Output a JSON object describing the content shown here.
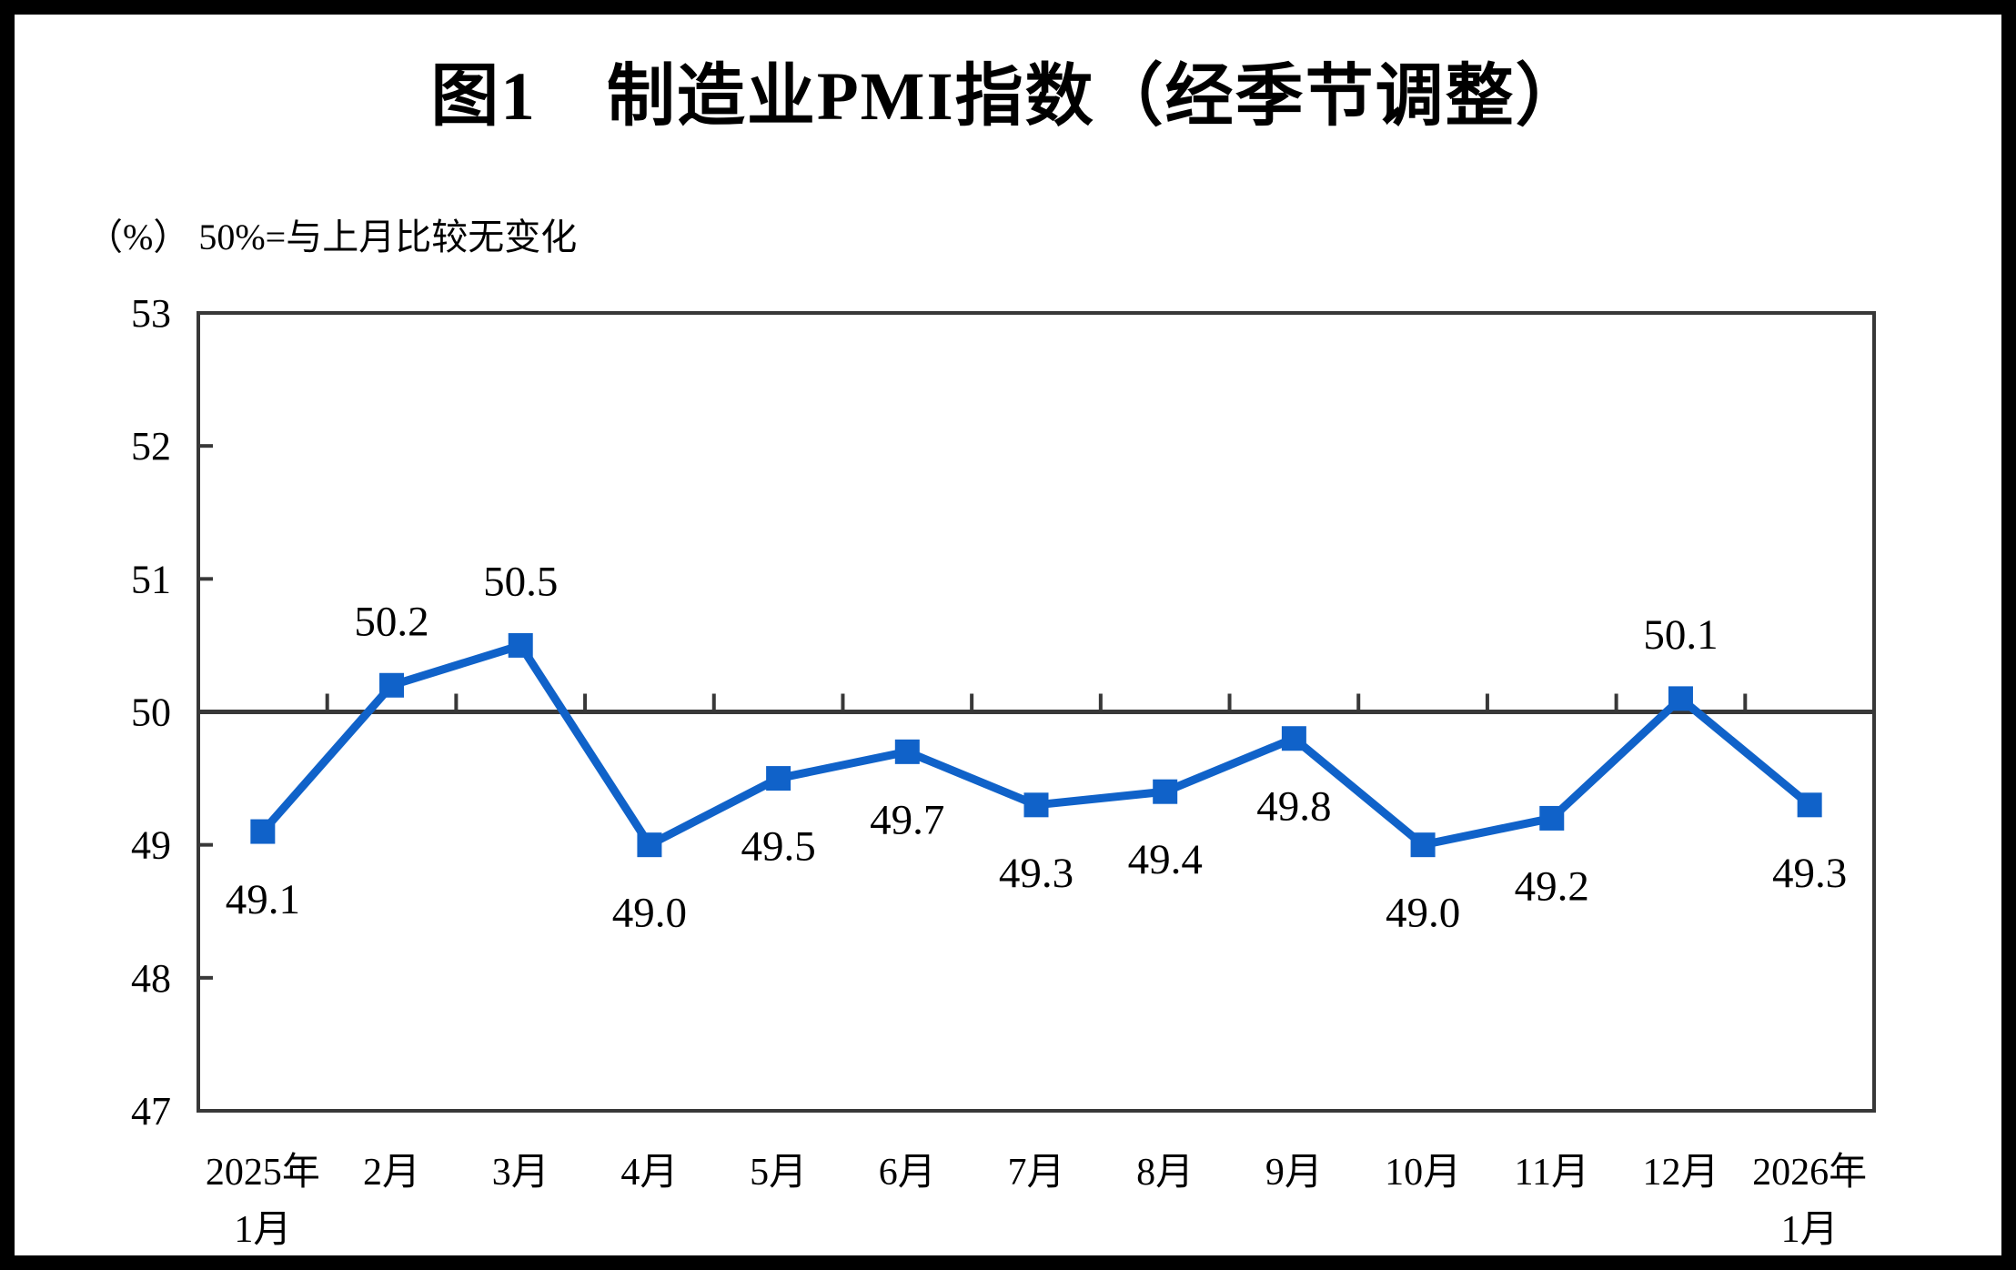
{
  "figure": {
    "title": "图1　制造业PMI指数（经季节调整）",
    "unit_note": "（%） 50%=与上月比较无变化",
    "border_color": "#000000",
    "background_color": "#ffffff"
  },
  "chart_data": {
    "type": "line",
    "title": "图1　制造业PMI指数（经季节调整）",
    "subtitle": "（%） 50%=与上月比较无变化",
    "categories": [
      [
        "2025年",
        "1月"
      ],
      [
        "2月"
      ],
      [
        "3月"
      ],
      [
        "4月"
      ],
      [
        "5月"
      ],
      [
        "6月"
      ],
      [
        "7月"
      ],
      [
        "8月"
      ],
      [
        "9月"
      ],
      [
        "10月"
      ],
      [
        "11月"
      ],
      [
        "12月"
      ],
      [
        "2026年",
        "1月"
      ]
    ],
    "values": [
      49.1,
      50.2,
      50.5,
      49.0,
      49.5,
      49.7,
      49.3,
      49.4,
      49.8,
      49.0,
      49.2,
      50.1,
      49.3
    ],
    "data_labels": [
      "49.1",
      "50.2",
      "50.5",
      "49.0",
      "49.5",
      "49.7",
      "49.3",
      "49.4",
      "49.8",
      "49.0",
      "49.2",
      "50.1",
      "49.3"
    ],
    "xlabel": "",
    "ylabel": "",
    "ylim": [
      47,
      53
    ],
    "yticks": [
      47,
      48,
      49,
      50,
      51,
      52,
      53
    ],
    "reference_line": 50,
    "grid": "off",
    "legend": "none",
    "marker": "square",
    "series_name": "制造业PMI",
    "series_color": "#1062C9",
    "axis_color": "#383838",
    "text_color": "#000000"
  }
}
